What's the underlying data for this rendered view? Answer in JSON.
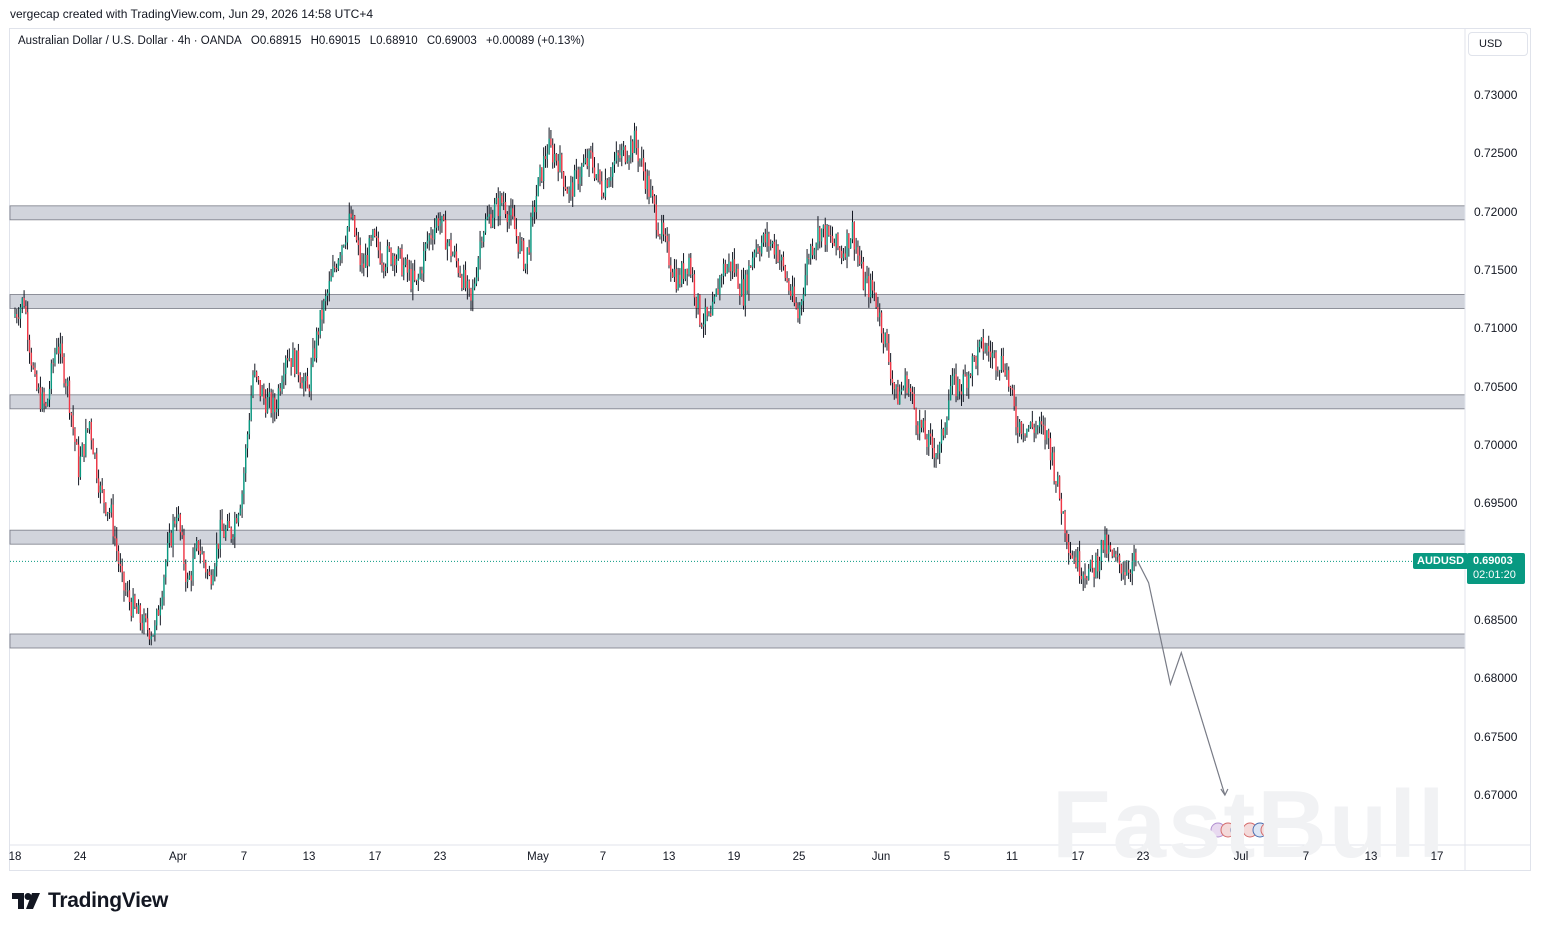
{
  "header": {
    "credit": "vergecap created with TradingView.com, Jun 29, 2026 14:58 UTC+4"
  },
  "legend": {
    "title": "Australian Dollar / U.S. Dollar · 4h · OANDA",
    "open": "O0.68915",
    "high": "H0.69015",
    "low": "L0.68910",
    "close": "C0.69003",
    "change": "+0.00089 (+0.13%)"
  },
  "currency_button": "USD",
  "price_badge": {
    "symbol": "AUDUSD",
    "price": "0.69003",
    "countdown": "02:01:20"
  },
  "watermark": "FastBull",
  "brand": "TradingView",
  "colors": {
    "up": "#089981",
    "down": "#f23645",
    "wick": "#131722",
    "zone": "#d1d4dc",
    "projection": "#787b86"
  },
  "chart_data": {
    "type": "candlestick",
    "symbol": "AUDUSD",
    "timeframe": "4h",
    "ylim": [
      0.6665,
      0.7355
    ],
    "y_ticks": [
      "0.73000",
      "0.72500",
      "0.72000",
      "0.71500",
      "0.71000",
      "0.70500",
      "0.70000",
      "0.69500",
      "0.68500",
      "0.68000",
      "0.67500",
      "0.67000"
    ],
    "x_ticks": [
      "18",
      "24",
      "Apr",
      "7",
      "13",
      "17",
      "23",
      "May",
      "7",
      "13",
      "19",
      "25",
      "Jun",
      "5",
      "11",
      "17",
      "23",
      "Jul",
      "7",
      "13",
      "17"
    ],
    "last_price": 0.69003,
    "zones": [
      {
        "top": 0.7205,
        "bottom": 0.7193
      },
      {
        "top": 0.7129,
        "bottom": 0.7117
      },
      {
        "top": 0.7043,
        "bottom": 0.7031
      },
      {
        "top": 0.6927,
        "bottom": 0.6915
      },
      {
        "top": 0.6838,
        "bottom": 0.6826
      }
    ],
    "price_path": [
      [
        "Mar 18",
        0.711
      ],
      [
        "Mar 19",
        0.7125
      ],
      [
        "Mar 20",
        0.705
      ],
      [
        "Mar 21",
        0.703
      ],
      [
        "Mar 22",
        0.709
      ],
      [
        "Mar 23",
        0.705
      ],
      [
        "Mar 24",
        0.698
      ],
      [
        "Mar 25",
        0.702
      ],
      [
        "Mar 26",
        0.696
      ],
      [
        "Mar 27",
        0.694
      ],
      [
        "Mar 28",
        0.688
      ],
      [
        "Mar 29",
        0.686
      ],
      [
        "Mar 30",
        0.6845
      ],
      [
        "Mar 31",
        0.684
      ],
      [
        "Apr 1",
        0.69
      ],
      [
        "Apr 2",
        0.6945
      ],
      [
        "Apr 3",
        0.688
      ],
      [
        "Apr 4",
        0.6915
      ],
      [
        "Apr 5",
        0.6885
      ],
      [
        "Apr 6",
        0.6925
      ],
      [
        "Apr 7",
        0.6925
      ],
      [
        "Apr 8",
        0.696
      ],
      [
        "Apr 9",
        0.706
      ],
      [
        "Apr 10",
        0.704
      ],
      [
        "Apr 11",
        0.703
      ],
      [
        "Apr 12",
        0.708
      ],
      [
        "Apr 13",
        0.707
      ],
      [
        "Apr 14",
        0.7045
      ],
      [
        "Apr 15",
        0.71
      ],
      [
        "Apr 16",
        0.7135
      ],
      [
        "Apr 17",
        0.717
      ],
      [
        "Apr 18",
        0.7195
      ],
      [
        "Apr 19",
        0.715
      ],
      [
        "Apr 20",
        0.7175
      ],
      [
        "Apr 21",
        0.716
      ],
      [
        "Apr 22",
        0.7165
      ],
      [
        "Apr 23",
        0.715
      ],
      [
        "Apr 24",
        0.7135
      ],
      [
        "Apr 25",
        0.7175
      ],
      [
        "Apr 26",
        0.7195
      ],
      [
        "Apr 27",
        0.717
      ],
      [
        "Apr 28",
        0.715
      ],
      [
        "Apr 29",
        0.712
      ],
      [
        "Apr 30",
        0.7185
      ],
      [
        "May 1",
        0.72
      ],
      [
        "May 2",
        0.721
      ],
      [
        "May 3",
        0.7185
      ],
      [
        "May 4",
        0.7155
      ],
      [
        "May 5",
        0.7215
      ],
      [
        "May 6",
        0.7255
      ],
      [
        "May 7",
        0.7245
      ],
      [
        "May 8",
        0.7215
      ],
      [
        "May 9",
        0.7235
      ],
      [
        "May 10",
        0.7245
      ],
      [
        "May 11",
        0.722
      ],
      [
        "May 12",
        0.724
      ],
      [
        "May 13",
        0.725
      ],
      [
        "May 14",
        0.726
      ],
      [
        "May 15",
        0.723
      ],
      [
        "May 16",
        0.7195
      ],
      [
        "May 17",
        0.7165
      ],
      [
        "May 18",
        0.714
      ],
      [
        "May 19",
        0.716
      ],
      [
        "May 20",
        0.711
      ],
      [
        "May 21",
        0.7105
      ],
      [
        "May 22",
        0.715
      ],
      [
        "May 23",
        0.7155
      ],
      [
        "May 24",
        0.713
      ],
      [
        "May 25",
        0.717
      ],
      [
        "May 26",
        0.7175
      ],
      [
        "May 27",
        0.717
      ],
      [
        "May 28",
        0.714
      ],
      [
        "May 29",
        0.711
      ],
      [
        "May 30",
        0.7165
      ],
      [
        "May 31",
        0.7185
      ],
      [
        "Jun 1",
        0.7175
      ],
      [
        "Jun 2",
        0.7165
      ],
      [
        "Jun 3",
        0.7185
      ],
      [
        "Jun 4",
        0.714
      ],
      [
        "Jun 5",
        0.713
      ],
      [
        "Jun 6",
        0.709
      ],
      [
        "Jun 7",
        0.704
      ],
      [
        "Jun 8",
        0.7055
      ],
      [
        "Jun 9",
        0.702
      ],
      [
        "Jun 10",
        0.7
      ],
      [
        "Jun 11",
        0.6995
      ],
      [
        "Jun 12",
        0.705
      ],
      [
        "Jun 13",
        0.705
      ],
      [
        "Jun 14",
        0.707
      ],
      [
        "Jun 15",
        0.7085
      ],
      [
        "Jun 16",
        0.7075
      ],
      [
        "Jun 17",
        0.707
      ],
      [
        "Jun 18",
        0.702
      ],
      [
        "Jun 19",
        0.7015
      ],
      [
        "Jun 20",
        0.7015
      ],
      [
        "Jun 21",
        0.7005
      ],
      [
        "Jun 22",
        0.6955
      ],
      [
        "Jun 23",
        0.691
      ],
      [
        "Jun 24",
        0.6895
      ],
      [
        "Jun 25",
        0.689
      ],
      [
        "Jun 26",
        0.6915
      ],
      [
        "Jun 27",
        0.69
      ],
      [
        "Jun 28",
        0.6895
      ],
      [
        "Jun 29",
        0.69003
      ]
    ],
    "projection": [
      [
        "Jun 30",
        0.6882
      ],
      [
        "Jul 2",
        0.6795
      ],
      [
        "Jul 3",
        0.6822
      ],
      [
        "Jul 7",
        0.67
      ]
    ]
  }
}
